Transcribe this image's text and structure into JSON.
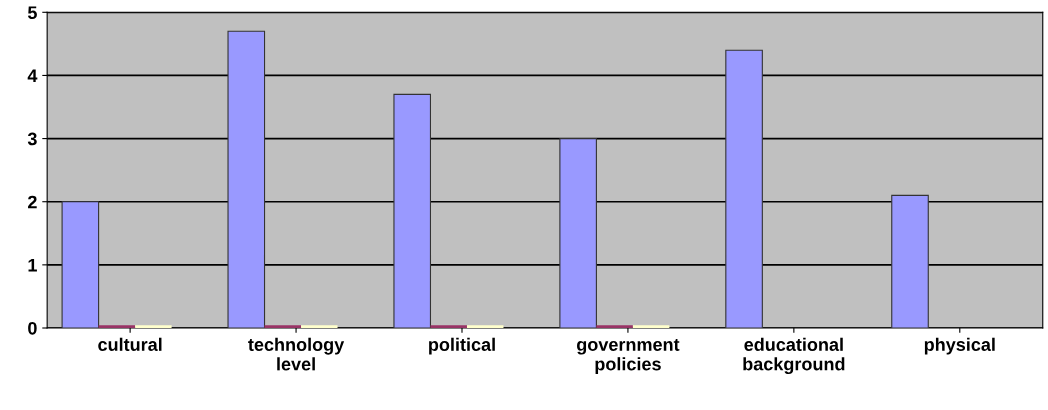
{
  "chart_data": {
    "type": "bar",
    "categories": [
      "cultural",
      "technology\nlevel",
      "political",
      "government\npolicies",
      "educational\nbackground",
      "physical"
    ],
    "series": [
      {
        "color": "#9999ff",
        "values": [
          2,
          4.7,
          3.7,
          3,
          4.4,
          2.1
        ]
      },
      {
        "color": "#993366",
        "values": [
          0,
          0,
          0,
          0,
          null,
          null
        ]
      },
      {
        "color": "#ffffcc",
        "values": [
          0,
          0,
          0,
          0,
          null,
          null
        ]
      }
    ],
    "ylim": [
      0,
      5
    ],
    "yticks": [
      0,
      1,
      2,
      3,
      4,
      5
    ],
    "grid": "y"
  }
}
